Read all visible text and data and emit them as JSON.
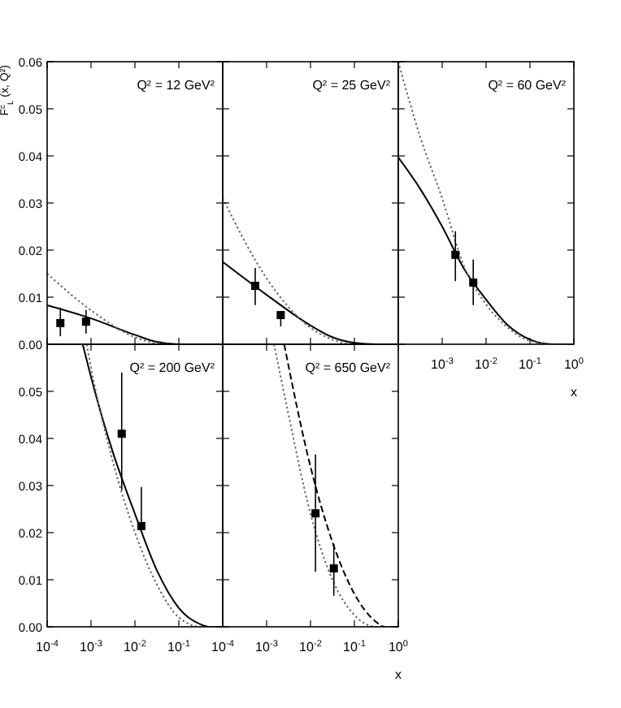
{
  "chart_data": [
    {
      "type": "line",
      "title": "Q² = 12 GeV²",
      "ylabel": "F$^{c}$$_{L}$ (x, Q²)",
      "log": "x",
      "grid": false,
      "tick_labels": "y",
      "xlim": [
        0.0001,
        1
      ],
      "ylim": [
        0,
        0.06
      ],
      "xticks": [
        {
          "value": 0.0001,
          "label": null
        },
        {
          "value": 0.001,
          "label": null
        },
        {
          "value": 0.01,
          "label": null
        },
        {
          "value": 0.1,
          "label": null
        },
        {
          "value": 1,
          "label": null
        }
      ],
      "yticks": [
        {
          "value": 0,
          "label": "0.00"
        },
        {
          "value": 0.01,
          "label": "0.01"
        },
        {
          "value": 0.02,
          "label": "0.02"
        },
        {
          "value": 0.03,
          "label": "0.03"
        },
        {
          "value": 0.04,
          "label": "0.04"
        },
        {
          "value": 0.05,
          "label": "0.05"
        },
        {
          "value": 0.06,
          "label": "0.06"
        }
      ],
      "series": [
        {
          "type": "line",
          "color": "#000000",
          "line_style": "solid",
          "marker": "none",
          "x": [
            0.0001,
            0.001,
            0.01,
            0.0316,
            0.1,
            1
          ],
          "values": [
            0.0083,
            0.0055,
            0.002,
            0.0005,
            0,
            0
          ]
        },
        {
          "type": "line",
          "color": "#666666",
          "line_style": "dotted",
          "marker": "none",
          "x": [
            0.0001,
            0.001,
            0.01,
            0.0316,
            0.1,
            1
          ],
          "values": [
            0.015,
            0.0072,
            0.0015,
            0.0002,
            0,
            0
          ]
        },
        {
          "type": "scatter",
          "color": "#000000",
          "marker": "square",
          "x": [
            0.0002,
            0.00077
          ],
          "values": [
            0.0045,
            0.0048
          ],
          "errors": [
            [
              0.0017,
              0.0078
            ],
            [
              0.0023,
              0.0073
            ]
          ]
        }
      ]
    },
    {
      "type": "line",
      "title": "Q² = 25 GeV²",
      "log": "x",
      "grid": false,
      "tick_labels": false,
      "xlim": [
        0.0001,
        1
      ],
      "ylim": [
        0,
        0.06
      ],
      "xticks": [
        {
          "value": 0.0001,
          "label": null
        },
        {
          "value": 0.001,
          "label": null
        },
        {
          "value": 0.01,
          "label": null
        },
        {
          "value": 0.1,
          "label": null
        },
        {
          "value": 1,
          "label": null
        }
      ],
      "yticks": [
        {
          "value": 0,
          "label": null
        },
        {
          "value": 0.01,
          "label": null
        },
        {
          "value": 0.02,
          "label": null
        },
        {
          "value": 0.03,
          "label": null
        },
        {
          "value": 0.04,
          "label": null
        },
        {
          "value": 0.05,
          "label": null
        },
        {
          "value": 0.06,
          "label": null
        }
      ],
      "series": [
        {
          "type": "line",
          "color": "#000000",
          "line_style": "solid",
          "marker": "none",
          "x": [
            0.0001,
            0.001,
            0.01,
            0.0316,
            0.1,
            0.316,
            1
          ],
          "values": [
            0.0175,
            0.0105,
            0.004,
            0.0015,
            0.0003,
            0,
            0
          ]
        },
        {
          "type": "line",
          "color": "#666666",
          "line_style": "dotted",
          "marker": "none",
          "x": [
            0.0001,
            0.001,
            0.01,
            0.0316,
            0.1,
            1
          ],
          "values": [
            0.031,
            0.014,
            0.0035,
            0.001,
            0,
            0
          ]
        },
        {
          "type": "scatter",
          "color": "#000000",
          "marker": "square",
          "x": [
            0.00055,
            0.0021
          ],
          "values": [
            0.0124,
            0.0062
          ],
          "errors": [
            [
              0.0083,
              0.0162
            ],
            [
              0.0038,
              0.0062
            ]
          ]
        }
      ]
    },
    {
      "type": "line",
      "title": "Q² = 60 GeV²",
      "xlabel": "x",
      "log": "x",
      "grid": false,
      "tick_labels": "x",
      "xlim": [
        0.0001,
        1
      ],
      "ylim": [
        0,
        0.06
      ],
      "xticks": [
        {
          "value": 0.0001,
          "label": null
        },
        {
          "value": 0.001,
          "label": "10$^{-3}$"
        },
        {
          "value": 0.01,
          "label": "10$^{-2}$"
        },
        {
          "value": 0.1,
          "label": "10$^{-1}$"
        },
        {
          "value": 1,
          "label": "10$^{0}$"
        }
      ],
      "yticks": [
        {
          "value": 0,
          "label": null
        },
        {
          "value": 0.01,
          "label": null
        },
        {
          "value": 0.02,
          "label": null
        },
        {
          "value": 0.03,
          "label": null
        },
        {
          "value": 0.04,
          "label": null
        },
        {
          "value": 0.05,
          "label": null
        },
        {
          "value": 0.06,
          "label": null
        }
      ],
      "series": [
        {
          "type": "line",
          "color": "#000000",
          "line_style": "solid",
          "marker": "none",
          "x": [
            0.0001,
            0.000316,
            0.001,
            0.00316,
            0.01,
            0.0316,
            0.1,
            0.316,
            1
          ],
          "values": [
            0.0397,
            0.033,
            0.025,
            0.016,
            0.0095,
            0.004,
            0.001,
            0,
            0
          ]
        },
        {
          "type": "line",
          "color": "#666666",
          "line_style": "dotted",
          "marker": "none",
          "x": [
            0.0001,
            0.000316,
            0.001,
            0.00316,
            0.01,
            0.0316,
            0.1,
            0.316,
            1
          ],
          "values": [
            0.06,
            0.044,
            0.031,
            0.0165,
            0.0085,
            0.0035,
            0.0007,
            0,
            0
          ]
        },
        {
          "type": "scatter",
          "color": "#000000",
          "marker": "square",
          "x": [
            0.002,
            0.0051
          ],
          "values": [
            0.019,
            0.0131
          ],
          "errors": [
            [
              0.0134,
              0.024
            ],
            [
              0.0083,
              0.018
            ]
          ]
        }
      ]
    },
    {
      "type": "line",
      "title": "Q² = 200 GeV²",
      "log": "x",
      "grid": false,
      "xlim": [
        0.0001,
        1
      ],
      "ylim": [
        0,
        0.06
      ],
      "xticks": [
        {
          "value": 0.0001,
          "label": "10$^{-4}$"
        },
        {
          "value": 0.001,
          "label": "10$^{-3}$"
        },
        {
          "value": 0.01,
          "label": "10$^{-2}$"
        },
        {
          "value": 0.1,
          "label": "10$^{-1}$"
        },
        {
          "value": 1,
          "label": null
        }
      ],
      "yticks": [
        {
          "value": 0,
          "label": "0.00"
        },
        {
          "value": 0.01,
          "label": "0.01"
        },
        {
          "value": 0.02,
          "label": "0.02"
        },
        {
          "value": 0.03,
          "label": "0.03"
        },
        {
          "value": 0.04,
          "label": "0.04"
        },
        {
          "value": 0.05,
          "label": "0.05"
        },
        {
          "value": 0.06,
          "label": null
        }
      ],
      "series": [
        {
          "type": "line",
          "color": "#000000",
          "line_style": "solid",
          "marker": "none",
          "x": [
            0.000646,
            0.001,
            0.00316,
            0.01,
            0.0316,
            0.1,
            0.316,
            0.501,
            1
          ],
          "values": [
            0.06,
            0.053,
            0.037,
            0.024,
            0.012,
            0.004,
            0.0005,
            0,
            0
          ]
        },
        {
          "type": "line",
          "color": "#666666",
          "line_style": "dotted",
          "marker": "none",
          "x": [
            0.000794,
            0.001,
            0.00316,
            0.01,
            0.0316,
            0.1,
            0.316,
            1
          ],
          "values": [
            0.06,
            0.055,
            0.035,
            0.02,
            0.009,
            0.002,
            0,
            0
          ]
        },
        {
          "type": "scatter",
          "color": "#000000",
          "marker": "square",
          "x": [
            0.005,
            0.014
          ],
          "values": [
            0.041,
            0.0214
          ],
          "errors": [
            [
              0.029,
              0.054
            ],
            [
              0.0206,
              0.0297
            ]
          ]
        }
      ]
    },
    {
      "type": "line",
      "title": "Q² = 650 GeV²",
      "xlabel": "x",
      "log": "x",
      "grid": false,
      "tick_labels": "x",
      "xlim": [
        0.0001,
        1
      ],
      "ylim": [
        0,
        0.06
      ],
      "xticks": [
        {
          "value": 0.0001,
          "label": "10$^{-4}$"
        },
        {
          "value": 0.001,
          "label": "10$^{-3}$"
        },
        {
          "value": 0.01,
          "label": "10$^{-2}$"
        },
        {
          "value": 0.1,
          "label": "10$^{-1}$"
        },
        {
          "value": 1,
          "label": "10$^{0}$"
        }
      ],
      "yticks": [
        {
          "value": 0,
          "label": null
        },
        {
          "value": 0.01,
          "label": null
        },
        {
          "value": 0.02,
          "label": null
        },
        {
          "value": 0.03,
          "label": null
        },
        {
          "value": 0.04,
          "label": null
        },
        {
          "value": 0.05,
          "label": null
        },
        {
          "value": 0.06,
          "label": null
        }
      ],
      "series": [
        {
          "type": "line",
          "color": "#000000",
          "line_style": "dashed",
          "marker": "none",
          "x": [
            0.00251,
            0.01,
            0.0316,
            0.1,
            0.316,
            0.501,
            1
          ],
          "values": [
            0.06,
            0.034,
            0.018,
            0.007,
            0.001,
            0,
            0
          ]
        },
        {
          "type": "line",
          "color": "#666666",
          "line_style": "dotted",
          "marker": "none",
          "x": [
            0.00148,
            0.00316,
            0.01,
            0.0316,
            0.1,
            0.316,
            1
          ],
          "values": [
            0.06,
            0.045,
            0.024,
            0.01,
            0.0025,
            0,
            0
          ]
        },
        {
          "type": "scatter",
          "color": "#000000",
          "marker": "square",
          "x": [
            0.013,
            0.034
          ],
          "values": [
            0.0241,
            0.0124
          ],
          "errors": [
            [
              0.0117,
              0.0366
            ],
            [
              0.0066,
              0.0176
            ]
          ]
        }
      ]
    }
  ]
}
